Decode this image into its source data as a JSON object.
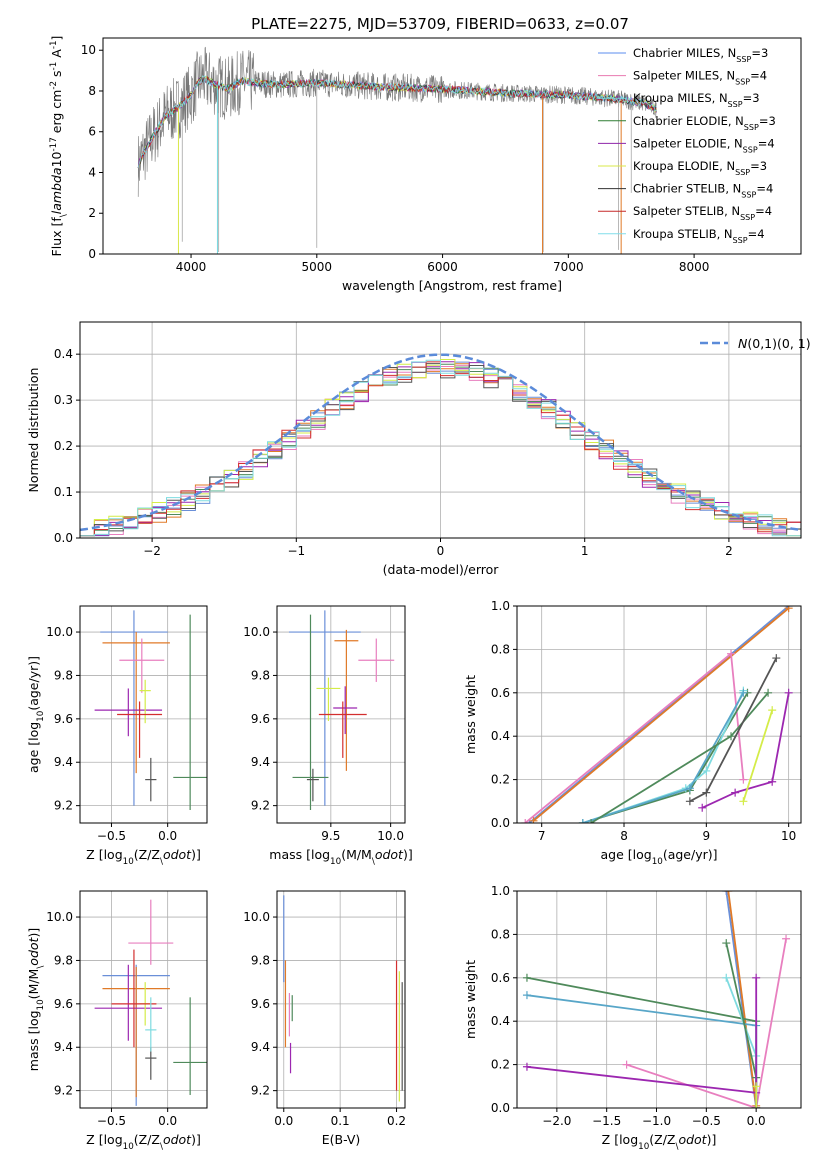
{
  "figure": {
    "title": "PLATE=2275, MJD=53709, FIBERID=0633, z=0.07",
    "series_names": [
      "Chabrier MILES, N$_{SSP}$=3",
      "Salpeter MILES, N$_{SSP}$=4",
      "Kroupa MILES, N$_{SSP}$=3",
      "Chabrier ELODIE, N$_{SSP}$=3",
      "Salpeter ELODIE, N$_{SSP}$=4",
      "Kroupa ELODIE, N$_{SSP}$=3",
      "Chabrier STELIB, N$_{SSP}$=4",
      "Salpeter STELIB, N$_{SSP}$=4",
      "Kroupa STELIB, N$_{SSP}$=4"
    ],
    "series_colors": [
      "#5b8def",
      "#e879b0",
      "#74d9e0",
      "#2e7d32",
      "#8e24aa",
      "#d8e84a",
      "#333333",
      "#c62828",
      "#80deea"
    ],
    "secondary_colors": {
      "orange": "#e07a28",
      "green": "#4f8a5b",
      "purple": "#9c27b0",
      "yellow": "#d4ec48",
      "darkgray": "#555555",
      "red": "#d32f2f",
      "blue": "#6a8fd8",
      "pink": "#e87fbf",
      "cyan": "#7fdbe0"
    }
  },
  "chart_data": [
    {
      "id": "spectrum",
      "type": "line",
      "title": "PLATE=2275, MJD=53709, FIBERID=0633, z=0.07",
      "xlabel": "wavelength [Angstrom, rest frame]",
      "ylabel": "Flux [f$_\\lambda$10$^{-17}$ erg cm$^{-2}$ s$^{-1}$ A$^{-1}$]",
      "xlim": [
        3300,
        8850
      ],
      "ylim": [
        0,
        10.6
      ],
      "xticks": [
        4000,
        5000,
        6000,
        7000,
        8000
      ],
      "yticks": [
        0,
        2,
        4,
        6,
        8,
        10
      ],
      "legend": "upper right",
      "grid": false,
      "continuum": {
        "x": [
          3580,
          3620,
          3700,
          3800,
          3900,
          4000,
          4050,
          4100,
          4200,
          4300,
          4400,
          4500,
          4700,
          5000,
          5500,
          6000,
          6500,
          7000,
          7400,
          7600,
          7700
        ],
        "y": [
          4.4,
          4.9,
          5.8,
          6.8,
          7.2,
          7.8,
          8.4,
          8.6,
          8.3,
          8.1,
          8.5,
          8.4,
          8.3,
          8.4,
          8.2,
          8.1,
          7.9,
          7.8,
          7.6,
          7.4,
          7.1
        ]
      }
    },
    {
      "id": "residuals",
      "type": "line",
      "xlabel": "(data-model)/error",
      "ylabel": "Normed distribution",
      "xlim": [
        -2.5,
        2.5
      ],
      "ylim": [
        0,
        0.47
      ],
      "xticks": [
        -2,
        -1,
        0,
        1,
        2
      ],
      "yticks": [
        0.0,
        0.1,
        0.2,
        0.3,
        0.4
      ],
      "grid": true,
      "legend": "upper right",
      "reference": {
        "name": "$\\mathcal{N}(0,1)$",
        "mean": 0,
        "sigma": 1
      }
    },
    {
      "id": "age-vs-Z",
      "type": "scatter",
      "xlabel": "Z [log$_{10}$(Z/Z$_\\odot$)]",
      "ylabel": "age  [log$_{10}$(age/yr)]",
      "xlim": [
        -0.78,
        0.35
      ],
      "ylim": [
        9.12,
        10.12
      ],
      "xticks": [
        -0.5,
        0.0
      ],
      "yticks": [
        9.2,
        9.4,
        9.6,
        9.8,
        10.0
      ],
      "grid": true,
      "points": [
        {
          "x": -0.3,
          "y": 10.0,
          "xerr": 0.3,
          "yerr": [
            0.8,
            0.1
          ]
        },
        {
          "x": -0.28,
          "y": 9.95,
          "xerr": 0.3,
          "yerr": [
            0.6,
            0.05
          ]
        },
        {
          "x": -0.23,
          "y": 9.87,
          "xerr": 0.2,
          "yerr": [
            0.15,
            0.1
          ]
        },
        {
          "x": 0.2,
          "y": 9.33,
          "xerr": 0.15,
          "yerr": [
            0.15,
            0.75
          ]
        },
        {
          "x": -0.35,
          "y": 9.64,
          "xerr": 0.3,
          "yerr": [
            0.12,
            0.1
          ]
        },
        {
          "x": -0.2,
          "y": 9.73,
          "xerr": 0.05,
          "yerr": [
            0.15,
            0.05
          ]
        },
        {
          "x": -0.15,
          "y": 9.32,
          "xerr": 0.05,
          "yerr": [
            0.1,
            0.1
          ]
        },
        {
          "x": -0.25,
          "y": 9.62,
          "xerr": 0.2,
          "yerr": [
            0.2,
            0.06
          ]
        }
      ]
    },
    {
      "id": "age-vs-mass",
      "type": "scatter",
      "xlabel": "mass [log$_{10}$(M/M$_\\odot$)]",
      "ylabel": "",
      "xlim": [
        9.05,
        10.12
      ],
      "ylim": [
        9.12,
        10.12
      ],
      "xticks": [
        9.5,
        10.0
      ],
      "yticks": [
        9.2,
        9.4,
        9.6,
        9.8,
        10.0
      ],
      "grid": true,
      "points": [
        {
          "x": 9.45,
          "y": 10.0,
          "xerr": 0.3,
          "yerr": [
            0.8,
            0.1
          ]
        },
        {
          "x": 9.63,
          "y": 9.96,
          "xerr": 0.1,
          "yerr": [
            0.6,
            0.05
          ]
        },
        {
          "x": 9.88,
          "y": 9.87,
          "xerr": 0.15,
          "yerr": [
            0.1,
            0.1
          ]
        },
        {
          "x": 9.33,
          "y": 9.33,
          "xerr": 0.15,
          "yerr": [
            0.15,
            0.75
          ]
        },
        {
          "x": 9.62,
          "y": 9.65,
          "xerr": 0.1,
          "yerr": [
            0.12,
            0.1
          ]
        },
        {
          "x": 9.48,
          "y": 9.74,
          "xerr": 0.1,
          "yerr": [
            0.15,
            0.05
          ]
        },
        {
          "x": 9.35,
          "y": 9.32,
          "xerr": 0.05,
          "yerr": [
            0.1,
            0.05
          ]
        },
        {
          "x": 9.6,
          "y": 9.62,
          "xerr": 0.2,
          "yerr": [
            0.2,
            0.06
          ]
        }
      ]
    },
    {
      "id": "weight-vs-age",
      "type": "line",
      "xlabel": "age  [log$_{10}$(age/yr)]",
      "ylabel": "mass weight",
      "xlim": [
        6.7,
        10.15
      ],
      "ylim": [
        0,
        1
      ],
      "xticks": [
        7,
        8,
        9,
        10
      ],
      "yticks": [
        0.0,
        0.2,
        0.4,
        0.6,
        0.8,
        1.0
      ],
      "grid": true,
      "lines": [
        {
          "x": [
            6.85,
            10.0
          ],
          "y": [
            0.0,
            1.0
          ]
        },
        {
          "x": [
            6.9,
            10.0
          ],
          "y": [
            0.01,
            0.99
          ]
        },
        {
          "x": [
            6.8,
            9.3,
            9.45
          ],
          "y": [
            0.0,
            0.78,
            0.2
          ]
        },
        {
          "x": [
            7.5,
            8.8,
            9.5
          ],
          "y": [
            0.0,
            0.15,
            0.6
          ]
        },
        {
          "x": [
            7.5,
            8.75,
            9.0,
            9.45
          ],
          "y": [
            0.0,
            0.16,
            0.24,
            0.61
          ]
        },
        {
          "x": [
            7.5,
            8.8,
            9.45
          ],
          "y": [
            0.0,
            0.16,
            0.6
          ]
        },
        {
          "x": [
            7.6,
            9.3,
            9.75
          ],
          "y": [
            0.0,
            0.4,
            0.6
          ]
        },
        {
          "x": [
            8.95,
            9.35,
            9.8,
            10.0
          ],
          "y": [
            0.07,
            0.14,
            0.19,
            0.6
          ]
        },
        {
          "x": [
            9.45,
            9.8
          ],
          "y": [
            0.1,
            0.52
          ]
        },
        {
          "x": [
            8.8,
            9.0,
            9.85
          ],
          "y": [
            0.1,
            0.14,
            0.76
          ]
        }
      ]
    },
    {
      "id": "mass-vs-Z",
      "type": "scatter",
      "xlabel": "Z [log$_{10}$(Z/Z$_\\odot$)]",
      "ylabel": "mass [log$_{10}$(M/M$_\\odot$)]",
      "xlim": [
        -0.78,
        0.35
      ],
      "ylim": [
        9.12,
        10.12
      ],
      "xticks": [
        -0.5,
        0.0
      ],
      "yticks": [
        9.2,
        9.4,
        9.6,
        9.8,
        10.0
      ],
      "grid": true,
      "points": [
        {
          "x": -0.28,
          "y": 9.73,
          "xerr": 0.3,
          "yerr": [
            0.6,
            0.05
          ]
        },
        {
          "x": -0.28,
          "y": 9.67,
          "xerr": 0.3,
          "yerr": [
            0.5,
            0.1
          ]
        },
        {
          "x": -0.15,
          "y": 9.88,
          "xerr": 0.2,
          "yerr": [
            0.1,
            0.2
          ]
        },
        {
          "x": 0.2,
          "y": 9.33,
          "xerr": 0.15,
          "yerr": [
            0.15,
            0.3
          ]
        },
        {
          "x": -0.35,
          "y": 9.58,
          "xerr": 0.3,
          "yerr": [
            0.15,
            0.2
          ]
        },
        {
          "x": -0.2,
          "y": 9.6,
          "xerr": 0.05,
          "yerr": [
            0.1,
            0.1
          ]
        },
        {
          "x": -0.15,
          "y": 9.35,
          "xerr": 0.05,
          "yerr": [
            0.1,
            0.05
          ]
        },
        {
          "x": -0.3,
          "y": 9.6,
          "xerr": 0.2,
          "yerr": [
            0.2,
            0.25
          ]
        },
        {
          "x": -0.15,
          "y": 9.48,
          "xerr": 0.05,
          "yerr": [
            0.1,
            0.15
          ]
        }
      ]
    },
    {
      "id": "mass-vs-EBV",
      "type": "scatter",
      "xlabel": "E(B-V)",
      "ylabel": "",
      "xlim": [
        -0.012,
        0.215
      ],
      "ylim": [
        9.12,
        10.12
      ],
      "xticks": [
        0.0,
        0.1,
        0.2
      ],
      "yticks": [
        9.2,
        9.4,
        9.6,
        9.8,
        10.0
      ],
      "grid": true,
      "points": [
        {
          "x": 0.0,
          "y": 9.9,
          "xerr": 0,
          "yerr": [
            0.2,
            0.2
          ]
        },
        {
          "x": 0.003,
          "y": 9.6,
          "xerr": 0,
          "yerr": [
            0.2,
            0.2
          ]
        },
        {
          "x": 0.01,
          "y": 9.55,
          "xerr": 0,
          "yerr": [
            0.1,
            0.1
          ]
        },
        {
          "x": 0.015,
          "y": 9.58,
          "xerr": 0,
          "yerr": [
            0.06,
            0.06
          ]
        },
        {
          "x": 0.012,
          "y": 9.35,
          "xerr": 0,
          "yerr": [
            0.07,
            0.07
          ]
        },
        {
          "x": 0.205,
          "y": 9.45,
          "xerr": 0,
          "yerr": [
            0.3,
            0.3
          ]
        },
        {
          "x": 0.21,
          "y": 9.45,
          "xerr": 0,
          "yerr": [
            0.25,
            0.25
          ]
        },
        {
          "x": 0.2,
          "y": 9.5,
          "xerr": 0,
          "yerr": [
            0.3,
            0.3
          ]
        }
      ]
    },
    {
      "id": "weight-vs-Z",
      "type": "line",
      "xlabel": "Z [log$_{10}$(Z/Z$_\\odot$)]",
      "ylabel": "mass weight",
      "xlim": [
        -2.4,
        0.45
      ],
      "ylim": [
        0,
        1
      ],
      "xticks": [
        -2.0,
        -1.5,
        -1.0,
        -0.5,
        0.0
      ],
      "yticks": [
        0.0,
        0.2,
        0.4,
        0.6,
        0.8,
        1.0
      ],
      "grid": true,
      "lines": [
        {
          "x": [
            -0.3,
            0.0
          ],
          "y": [
            1.0,
            0.0
          ]
        },
        {
          "x": [
            -0.28,
            0.0
          ],
          "y": [
            1.0,
            0.01
          ]
        },
        {
          "x": [
            -1.3,
            0.0,
            0.3
          ],
          "y": [
            0.2,
            0.0,
            0.78
          ]
        },
        {
          "x": [
            -2.3,
            0.0,
            0.0
          ],
          "y": [
            0.6,
            0.4,
            0.0
          ]
        },
        {
          "x": [
            -0.3,
            0.0,
            0.0
          ],
          "y": [
            0.6,
            0.24,
            0.0
          ]
        },
        {
          "x": [
            -2.3,
            0.0,
            0.0
          ],
          "y": [
            0.52,
            0.38,
            0.0
          ]
        },
        {
          "x": [
            -0.3,
            0.0,
            0.0
          ],
          "y": [
            0.76,
            0.14,
            0.0
          ]
        },
        {
          "x": [
            -2.3,
            0.0,
            0.0,
            0.0
          ],
          "y": [
            0.19,
            0.07,
            0.6,
            0.0
          ]
        },
        {
          "x": [
            0.0,
            0.0
          ],
          "y": [
            0.0,
            0.1
          ]
        }
      ]
    }
  ]
}
